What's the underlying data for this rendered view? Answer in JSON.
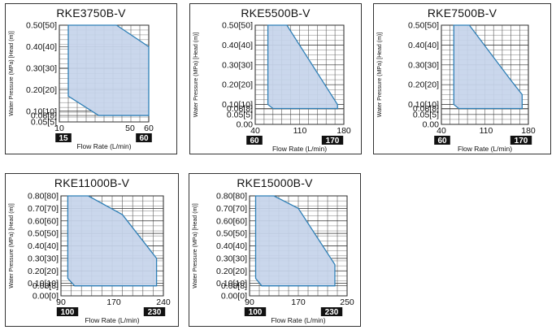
{
  "chart_data": [
    {
      "type": "area",
      "title": "RKE3750B-V",
      "xlabel": "Flow Rate (L/min)",
      "ylabel": "Water Pressure (MPa) [Head (m)]",
      "xlim": [
        10,
        60
      ],
      "xticks": [
        "10",
        "50",
        "60"
      ],
      "yticks": [
        "0.50 [50]",
        "0.40 [40]",
        "0.30 [30]",
        "0.20 [20]",
        "0.10 [10]",
        "0.08 [8]",
        "0.05 [5]"
      ],
      "badges": [
        "15",
        "60"
      ],
      "grid": true,
      "polygon": [
        [
          15,
          0.5
        ],
        [
          42,
          0.5
        ],
        [
          60,
          0.4
        ],
        [
          60,
          0.08
        ],
        [
          32,
          0.08
        ],
        [
          15,
          0.17
        ]
      ]
    },
    {
      "type": "area",
      "title": "RKE5500B-V",
      "xlabel": "Flow Rate (L/min)",
      "ylabel": "Water Pressure (MPa) [Head (m)]",
      "xlim": [
        40,
        180
      ],
      "xticks": [
        "40",
        "110",
        "180"
      ],
      "yticks": [
        "0.50 [50]",
        "0.40 [40]",
        "0.30 [30]",
        "0.20 [20]",
        "0.10 [10]",
        "0.08 [8]",
        "0.05 [5]",
        "0.00"
      ],
      "badges": [
        "60",
        "170"
      ],
      "grid": true,
      "polygon": [
        [
          60,
          0.5
        ],
        [
          90,
          0.5
        ],
        [
          150,
          0.2
        ],
        [
          170,
          0.1
        ],
        [
          170,
          0.08
        ],
        [
          68,
          0.08
        ],
        [
          60,
          0.1
        ]
      ]
    },
    {
      "type": "area",
      "title": "RKE7500B-V",
      "xlabel": "Flow Rate (L/min)",
      "ylabel": "Water Pressure (MPa) [Head (m)]",
      "xlim": [
        40,
        180
      ],
      "xticks": [
        "40",
        "110",
        "180"
      ],
      "yticks": [
        "0.50 [50]",
        "0.40 [40]",
        "0.30 [30]",
        "0.20 [20]",
        "0.10 [10]",
        "0.08 [8]",
        "0.05 [5]",
        "0.00"
      ],
      "badges": [
        "60",
        "170"
      ],
      "grid": true,
      "polygon": [
        [
          60,
          0.5
        ],
        [
          85,
          0.5
        ],
        [
          150,
          0.23
        ],
        [
          170,
          0.15
        ],
        [
          170,
          0.08
        ],
        [
          68,
          0.08
        ],
        [
          60,
          0.1
        ]
      ]
    },
    {
      "type": "area",
      "title": "RKE11000B-V",
      "xlabel": "Flow Rate (L/min)",
      "ylabel": "Water Pressure (MPa) [Head (m)]",
      "xlim": [
        90,
        240
      ],
      "xticks": [
        "90",
        "170",
        "240"
      ],
      "yticks": [
        "0.80 [80]",
        "0.70 [70]",
        "0.60 [60]",
        "0.50 [50]",
        "0.40 [40]",
        "0.30 [30]",
        "0.20 [20]",
        "0.10 [10]",
        "0.08 [8]",
        "0.00 [0]"
      ],
      "badges": [
        "100",
        "230"
      ],
      "grid": true,
      "polygon": [
        [
          100,
          0.8
        ],
        [
          130,
          0.8
        ],
        [
          180,
          0.65
        ],
        [
          230,
          0.3
        ],
        [
          230,
          0.08
        ],
        [
          110,
          0.08
        ],
        [
          100,
          0.14
        ]
      ]
    },
    {
      "type": "area",
      "title": "RKE15000B-V",
      "xlabel": "Flow Rate (L/min)",
      "ylabel": "Water Pressure (MPa) [Head (m)]",
      "xlim": [
        90,
        250
      ],
      "xticks": [
        "90",
        "170",
        "250"
      ],
      "yticks": [
        "0.80 [80]",
        "0.70 [70]",
        "0.60 [60]",
        "0.50 [50]",
        "0.40 [40]",
        "0.30 [30]",
        "0.20 [20]",
        "0.10 [10]",
        "0.08 [8]",
        "0.00 [0]"
      ],
      "badges": [
        "100",
        "230"
      ],
      "grid": true,
      "polygon": [
        [
          100,
          0.8
        ],
        [
          130,
          0.8
        ],
        [
          170,
          0.7
        ],
        [
          230,
          0.25
        ],
        [
          230,
          0.08
        ],
        [
          110,
          0.08
        ],
        [
          100,
          0.14
        ]
      ]
    }
  ],
  "colors": {
    "fill": "#c6d4ea",
    "edge": "#2e7fb6",
    "grid": "#5a5a5a",
    "badge": "#111111"
  }
}
